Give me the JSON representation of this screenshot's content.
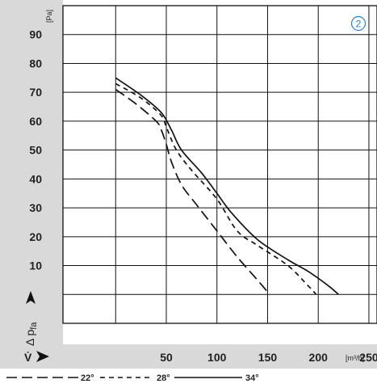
{
  "chart_data": {
    "type": "line",
    "badge": "2",
    "ylabel": "Δ p",
    "ylabel_sub": "fa",
    "yunit": "[Pa]",
    "xlabel": "V̇",
    "xunit": "[m³/h]",
    "xlim": [
      -52,
      258
    ],
    "ylim": [
      -10,
      100
    ],
    "x_ticks": [
      50,
      100,
      150,
      200,
      250
    ],
    "y_ticks": [
      10,
      20,
      30,
      40,
      50,
      60,
      70,
      80,
      90
    ],
    "grid": true,
    "legend_position": "bottom",
    "series": [
      {
        "name": "22°",
        "dash": "long-dash",
        "points": [
          [
            0,
            71
          ],
          [
            20,
            66
          ],
          [
            40,
            60
          ],
          [
            45,
            57
          ],
          [
            50,
            52
          ],
          [
            55,
            46
          ],
          [
            65,
            38
          ],
          [
            80,
            31
          ],
          [
            100,
            22
          ],
          [
            120,
            13
          ],
          [
            140,
            5
          ],
          [
            152,
            0
          ]
        ]
      },
      {
        "name": "28°",
        "dash": "short-dash",
        "points": [
          [
            0,
            73
          ],
          [
            25,
            68
          ],
          [
            45,
            62
          ],
          [
            50,
            58
          ],
          [
            60,
            50
          ],
          [
            75,
            43
          ],
          [
            100,
            33
          ],
          [
            120,
            22
          ],
          [
            140,
            17
          ],
          [
            170,
            10
          ],
          [
            190,
            3
          ],
          [
            198,
            0
          ]
        ]
      },
      {
        "name": "34°",
        "dash": "solid",
        "points": [
          [
            0,
            75
          ],
          [
            25,
            69
          ],
          [
            45,
            63
          ],
          [
            55,
            57
          ],
          [
            65,
            50
          ],
          [
            85,
            42
          ],
          [
            100,
            35
          ],
          [
            115,
            28
          ],
          [
            140,
            19
          ],
          [
            170,
            12
          ],
          [
            190,
            8
          ],
          [
            210,
            3
          ],
          [
            220,
            0
          ]
        ]
      }
    ]
  }
}
